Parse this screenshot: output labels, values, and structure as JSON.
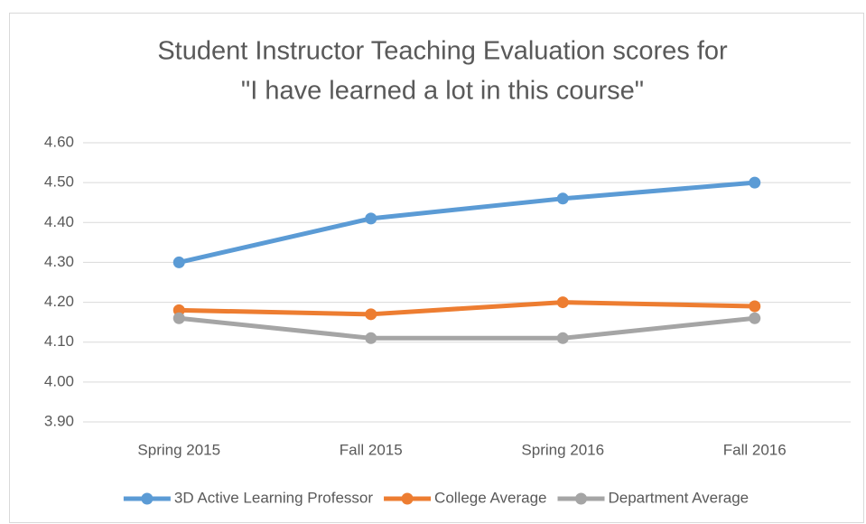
{
  "chart_data": {
    "type": "line",
    "title": [
      "Student Instructor Teaching Evaluation scores for",
      "\"I have learned a lot in this course\""
    ],
    "categories": [
      "Spring 2015",
      "Fall 2015",
      "Spring 2016",
      "Fall 2016"
    ],
    "series": [
      {
        "name": "3D Active Learning Professor",
        "color": "#5b9bd5",
        "values": [
          4.3,
          4.41,
          4.46,
          4.5
        ]
      },
      {
        "name": "College Average",
        "color": "#ed7d31",
        "values": [
          4.18,
          4.17,
          4.2,
          4.19
        ]
      },
      {
        "name": "Department Average",
        "color": "#a5a5a5",
        "values": [
          4.16,
          4.11,
          4.11,
          4.16
        ]
      }
    ],
    "ylim": [
      3.9,
      4.6
    ],
    "yticks": [
      {
        "value": 3.9,
        "label": "3.90"
      },
      {
        "value": 4.0,
        "label": "4.00"
      },
      {
        "value": 4.1,
        "label": "4.10"
      },
      {
        "value": 4.2,
        "label": "4.20"
      },
      {
        "value": 4.3,
        "label": "4.30"
      },
      {
        "value": 4.4,
        "label": "4.40"
      },
      {
        "value": 4.5,
        "label": "4.50"
      },
      {
        "value": 4.6,
        "label": "4.60"
      }
    ],
    "grid": true,
    "legend": "bottom"
  }
}
